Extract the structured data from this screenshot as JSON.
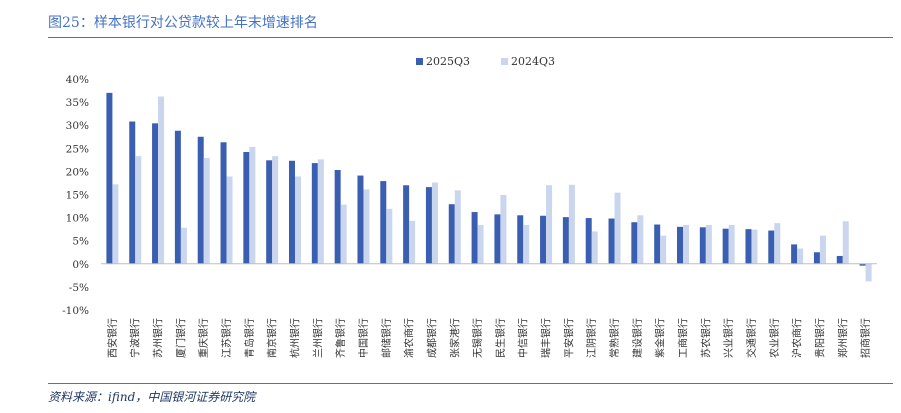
{
  "figure": {
    "title": "图25：样本银行对公贷款较上年末增速排名",
    "source": "资料来源：ifind，中国银河证券研究院"
  },
  "colors": {
    "accent": "#4472c4",
    "series_2025": "#3a5fb0",
    "series_2024": "#c9d6ee"
  },
  "chart_data": {
    "type": "bar",
    "title": "图25：样本银行对公贷款较上年末增速排名",
    "xlabel": "",
    "ylabel": "",
    "ylim": [
      -10,
      40
    ],
    "yticks": [
      -10,
      -5,
      0,
      5,
      10,
      15,
      20,
      25,
      30,
      35,
      40
    ],
    "ytick_labels": [
      "-10%",
      "-5%",
      "0%",
      "5%",
      "10%",
      "15%",
      "20%",
      "25%",
      "30%",
      "35%",
      "40%"
    ],
    "legend_position": "top-center",
    "grid": false,
    "categories": [
      "西安银行",
      "宁波银行",
      "苏州银行",
      "厦门银行",
      "重庆银行",
      "江苏银行",
      "青岛银行",
      "南京银行",
      "杭州银行",
      "兰州银行",
      "齐鲁银行",
      "中国银行",
      "邮储银行",
      "渝农商行",
      "成都银行",
      "张家港行",
      "无锡银行",
      "民生银行",
      "中信银行",
      "瑞丰银行",
      "平安银行",
      "江阴银行",
      "常熟银行",
      "建设银行",
      "紫金银行",
      "工商银行",
      "苏农银行",
      "兴业银行",
      "交通银行",
      "农业银行",
      "沪农商行",
      "贵阳银行",
      "郑州银行",
      "招商银行"
    ],
    "series": [
      {
        "name": "2025Q3",
        "values": [
          37.0,
          30.8,
          30.4,
          28.8,
          27.5,
          26.3,
          24.2,
          22.4,
          22.3,
          21.8,
          20.3,
          19.1,
          17.9,
          17.0,
          16.6,
          12.9,
          11.2,
          10.7,
          10.5,
          10.4,
          10.1,
          9.9,
          9.8,
          9.0,
          8.5,
          8.0,
          7.9,
          7.6,
          7.5,
          7.2,
          4.2,
          2.5,
          1.7,
          -0.4
        ]
      },
      {
        "name": "2024Q3",
        "values": [
          17.2,
          23.3,
          36.2,
          7.8,
          22.9,
          18.9,
          25.3,
          23.3,
          18.9,
          22.6,
          12.8,
          16.1,
          11.9,
          9.3,
          17.6,
          15.9,
          8.4,
          14.9,
          8.4,
          17.0,
          17.1,
          7.0,
          15.4,
          10.5,
          6.1,
          8.4,
          8.4,
          8.4,
          7.4,
          8.8,
          3.3,
          6.1,
          9.2,
          -3.8
        ]
      }
    ]
  }
}
